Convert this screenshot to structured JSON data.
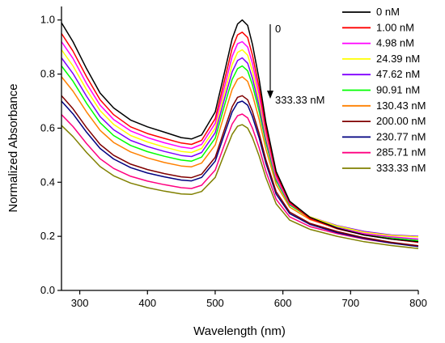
{
  "chart_data": {
    "type": "line",
    "xlabel": "Wavelength (nm)",
    "ylabel": "Normalized Absorbance",
    "xlim": [
      273,
      800
    ],
    "ylim": [
      0.0,
      1.05
    ],
    "x_ticks": [
      "300",
      "400",
      "500",
      "600",
      "700",
      "800"
    ],
    "y_ticks": [
      "0.0",
      "0.2",
      "0.4",
      "0.6",
      "0.8",
      "1.0"
    ],
    "grid": false,
    "legend_placement": "top-right",
    "annotation": {
      "start": "0",
      "end": "333.33 nM",
      "direction": "down"
    },
    "x": [
      273,
      290,
      310,
      330,
      350,
      375,
      400,
      425,
      450,
      465,
      480,
      500,
      515,
      525,
      533,
      540,
      548,
      555,
      565,
      575,
      590,
      610,
      640,
      680,
      720,
      760,
      800
    ],
    "series": [
      {
        "name": "0 nM",
        "color": "#000000",
        "values": [
          0.99,
          0.92,
          0.82,
          0.73,
          0.675,
          0.63,
          0.605,
          0.585,
          0.565,
          0.56,
          0.575,
          0.66,
          0.82,
          0.93,
          0.985,
          1.0,
          0.98,
          0.91,
          0.78,
          0.62,
          0.44,
          0.33,
          0.27,
          0.23,
          0.205,
          0.19,
          0.18
        ]
      },
      {
        "name": "1.00 nM",
        "color": "#ff0000",
        "values": [
          0.95,
          0.885,
          0.79,
          0.705,
          0.65,
          0.605,
          0.58,
          0.562,
          0.545,
          0.54,
          0.555,
          0.635,
          0.79,
          0.895,
          0.945,
          0.955,
          0.935,
          0.87,
          0.75,
          0.6,
          0.43,
          0.325,
          0.265,
          0.228,
          0.205,
          0.19,
          0.178
        ]
      },
      {
        "name": "4.98 nM",
        "color": "#ff00ff",
        "values": [
          0.92,
          0.858,
          0.765,
          0.685,
          0.632,
          0.59,
          0.565,
          0.546,
          0.53,
          0.525,
          0.54,
          0.618,
          0.765,
          0.865,
          0.912,
          0.92,
          0.9,
          0.84,
          0.725,
          0.585,
          0.422,
          0.322,
          0.268,
          0.232,
          0.21,
          0.198,
          0.19
        ]
      },
      {
        "name": "24.39 nM",
        "color": "#ffff00",
        "values": [
          0.89,
          0.83,
          0.742,
          0.665,
          0.614,
          0.573,
          0.549,
          0.53,
          0.514,
          0.51,
          0.525,
          0.6,
          0.742,
          0.835,
          0.88,
          0.89,
          0.87,
          0.812,
          0.703,
          0.572,
          0.418,
          0.322,
          0.272,
          0.238,
          0.215,
          0.203,
          0.198
        ]
      },
      {
        "name": "47.62 nM",
        "color": "#8000ff",
        "values": [
          0.86,
          0.802,
          0.718,
          0.643,
          0.594,
          0.555,
          0.532,
          0.514,
          0.499,
          0.495,
          0.51,
          0.583,
          0.72,
          0.808,
          0.85,
          0.86,
          0.84,
          0.785,
          0.682,
          0.558,
          0.412,
          0.32,
          0.272,
          0.24,
          0.218,
          0.205,
          0.2
        ]
      },
      {
        "name": "90.91 nM",
        "color": "#00ff00",
        "values": [
          0.83,
          0.774,
          0.692,
          0.62,
          0.573,
          0.536,
          0.513,
          0.496,
          0.482,
          0.478,
          0.493,
          0.563,
          0.695,
          0.78,
          0.82,
          0.83,
          0.812,
          0.76,
          0.662,
          0.545,
          0.405,
          0.316,
          0.268,
          0.235,
          0.21,
          0.195,
          0.185
        ]
      },
      {
        "name": "130.43 nM",
        "color": "#ff8000",
        "values": [
          0.79,
          0.737,
          0.66,
          0.592,
          0.547,
          0.512,
          0.49,
          0.473,
          0.46,
          0.457,
          0.471,
          0.538,
          0.662,
          0.743,
          0.781,
          0.79,
          0.773,
          0.724,
          0.632,
          0.522,
          0.392,
          0.308,
          0.262,
          0.23,
          0.207,
          0.19,
          0.178
        ]
      },
      {
        "name": "200.00 nM",
        "color": "#800000",
        "values": [
          0.72,
          0.672,
          0.602,
          0.54,
          0.5,
          0.467,
          0.447,
          0.432,
          0.42,
          0.417,
          0.43,
          0.492,
          0.605,
          0.679,
          0.714,
          0.72,
          0.705,
          0.662,
          0.58,
          0.482,
          0.365,
          0.29,
          0.248,
          0.218,
          0.195,
          0.178,
          0.165
        ]
      },
      {
        "name": "230.77 nM",
        "color": "#000080",
        "values": [
          0.7,
          0.653,
          0.585,
          0.525,
          0.486,
          0.454,
          0.434,
          0.42,
          0.408,
          0.405,
          0.418,
          0.478,
          0.588,
          0.66,
          0.694,
          0.7,
          0.685,
          0.643,
          0.564,
          0.469,
          0.356,
          0.284,
          0.244,
          0.214,
          0.192,
          0.175,
          0.162
        ]
      },
      {
        "name": "285.71 nM",
        "color": "#ff0080",
        "values": [
          0.65,
          0.606,
          0.543,
          0.487,
          0.451,
          0.422,
          0.404,
          0.391,
          0.38,
          0.377,
          0.389,
          0.445,
          0.548,
          0.615,
          0.646,
          0.652,
          0.638,
          0.6,
          0.527,
          0.44,
          0.337,
          0.272,
          0.236,
          0.21,
          0.19,
          0.175,
          0.165
        ]
      },
      {
        "name": "333.33 nM",
        "color": "#808000",
        "values": [
          0.61,
          0.569,
          0.51,
          0.458,
          0.424,
          0.397,
          0.38,
          0.367,
          0.357,
          0.355,
          0.366,
          0.418,
          0.514,
          0.577,
          0.607,
          0.613,
          0.6,
          0.565,
          0.497,
          0.416,
          0.32,
          0.26,
          0.226,
          0.2,
          0.18,
          0.166,
          0.155
        ]
      }
    ]
  }
}
